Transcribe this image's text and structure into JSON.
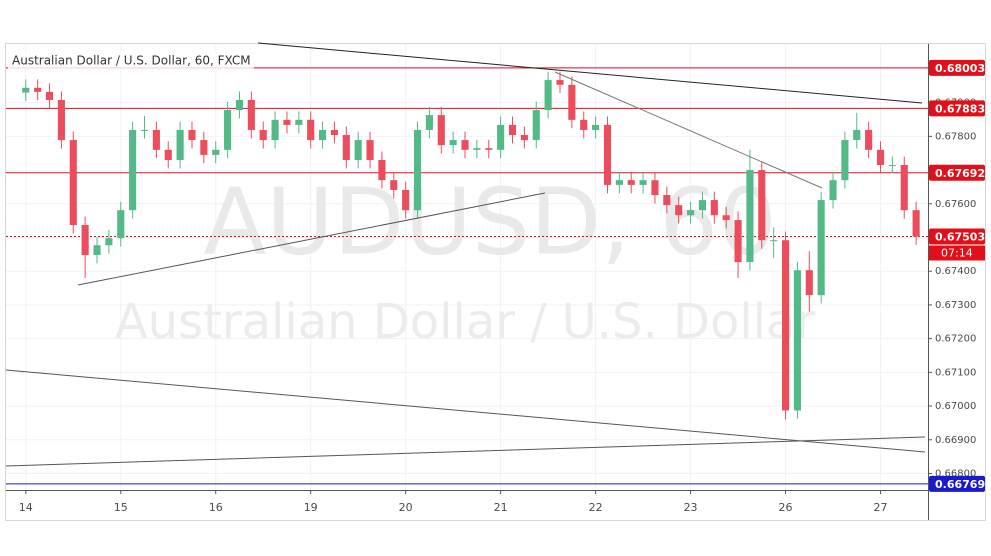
{
  "chart_data": {
    "type": "candlestick",
    "title": "Australian Dollar / U.S. Dollar, 60, FXCM",
    "watermark": "AUDUSD, 60",
    "watermark_subtitle": "Australian Dollar / U.S. Dollar",
    "countdown": "07:14",
    "up_color": "#53b987",
    "down_color": "#eb4d5c",
    "grid": true,
    "xlim": [
      -5,
      228
    ],
    "ylim": [
      0.66751,
      0.68071
    ],
    "xticks": [
      {
        "value": 0,
        "label": "14"
      },
      {
        "value": 24,
        "label": "15"
      },
      {
        "value": 48,
        "label": "16"
      },
      {
        "value": 72,
        "label": "19"
      },
      {
        "value": 96,
        "label": "20"
      },
      {
        "value": 120,
        "label": "21"
      },
      {
        "value": 144,
        "label": "22"
      },
      {
        "value": 168,
        "label": "23"
      },
      {
        "value": 192,
        "label": "26"
      },
      {
        "value": 216,
        "label": "27"
      }
    ],
    "yticks": [
      {
        "value": 0.668,
        "label": "0.66800"
      },
      {
        "value": 0.669,
        "label": "0.66900"
      },
      {
        "value": 0.67,
        "label": "0.67000"
      },
      {
        "value": 0.671,
        "label": "0.67100"
      },
      {
        "value": 0.672,
        "label": "0.67200"
      },
      {
        "value": 0.673,
        "label": "0.67300"
      },
      {
        "value": 0.674,
        "label": "0.67400"
      },
      {
        "value": 0.675,
        "label": "0.67500"
      },
      {
        "value": 0.676,
        "label": "0.67600"
      },
      {
        "value": 0.677,
        "label": "0.67700"
      },
      {
        "value": 0.678,
        "label": "0.67800"
      },
      {
        "value": 0.679,
        "label": "0.67900"
      },
      {
        "value": 0.68,
        "label": "0.68000"
      }
    ],
    "price_lines": [
      {
        "value": 0.68003,
        "color": "#e0101a",
        "style": "solid"
      },
      {
        "value": 0.67883,
        "color": "#e0101a",
        "style": "solid"
      },
      {
        "value": 0.67692,
        "color": "#e0101a",
        "style": "solid"
      },
      {
        "value": 0.67503,
        "color": "#e0101a",
        "style": "dotted"
      },
      {
        "value": 0.66769,
        "color": "#1a1acc",
        "style": "solid"
      }
    ],
    "x": [
      0,
      3,
      6,
      9,
      12,
      15,
      18,
      21,
      24,
      27,
      30,
      33,
      36,
      39,
      42,
      45,
      48,
      51,
      54,
      57,
      60,
      63,
      66,
      69,
      72,
      75,
      78,
      81,
      84,
      87,
      90,
      93,
      96,
      99,
      102,
      105,
      108,
      111,
      114,
      117,
      120,
      123,
      126,
      129,
      132,
      135,
      138,
      141,
      144,
      147,
      150,
      153,
      156,
      159,
      162,
      165,
      168,
      171,
      174,
      177,
      180,
      183,
      186,
      189,
      192,
      195,
      198,
      201,
      204,
      207,
      210,
      213,
      216,
      219,
      222,
      225
    ],
    "open": [
      0.6793,
      0.67944,
      0.67932,
      0.67908,
      0.67789,
      0.67537,
      0.67448,
      0.67477,
      0.67498,
      0.67581,
      0.67819,
      0.67819,
      0.6776,
      0.6773,
      0.67819,
      0.67789,
      0.67745,
      0.6776,
      0.67878,
      0.67908,
      0.67819,
      0.67789,
      0.67849,
      0.67834,
      0.67849,
      0.67789,
      0.67819,
      0.67804,
      0.6773,
      0.67789,
      0.6773,
      0.6767,
      0.67641,
      0.67581,
      0.67819,
      0.67863,
      0.67774,
      0.67789,
      0.6776,
      0.67765,
      0.6776,
      0.67834,
      0.67804,
      0.67789,
      0.67878,
      0.67967,
      0.67953,
      0.67849,
      0.67819,
      0.67834,
      0.67656,
      0.6767,
      0.67656,
      0.6767,
      0.67626,
      0.67596,
      0.67566,
      0.67581,
      0.67611,
      0.67566,
      0.67552,
      0.67427,
      0.677,
      0.67492,
      0.67492,
      0.66987,
      0.67403,
      0.67329,
      0.67611,
      0.6767,
      0.67789,
      0.67819,
      0.6776,
      0.67715,
      0.67715,
      0.67581
    ],
    "high": [
      0.67969,
      0.67969,
      0.67957,
      0.67933,
      0.67814,
      0.67562,
      0.67502,
      0.67523,
      0.67606,
      0.67844,
      0.6786,
      0.67844,
      0.67785,
      0.67844,
      0.67844,
      0.67814,
      0.67785,
      0.67903,
      0.67933,
      0.67933,
      0.67844,
      0.67874,
      0.67874,
      0.67874,
      0.67874,
      0.67844,
      0.67844,
      0.67829,
      0.67814,
      0.67814,
      0.67755,
      0.67695,
      0.67666,
      0.67844,
      0.67888,
      0.67888,
      0.67814,
      0.67814,
      0.6779,
      0.6779,
      0.67859,
      0.67859,
      0.67829,
      0.67903,
      0.67992,
      0.67992,
      0.67978,
      0.67874,
      0.67859,
      0.67859,
      0.67695,
      0.67695,
      0.67695,
      0.67695,
      0.67651,
      0.67621,
      0.67606,
      0.67636,
      0.67636,
      0.67591,
      0.67577,
      0.6776,
      0.67725,
      0.6753,
      0.67517,
      0.67428,
      0.6746,
      0.67636,
      0.67695,
      0.67814,
      0.6787,
      0.67844,
      0.67785,
      0.6774,
      0.6774,
      0.67606
    ],
    "low": [
      0.67905,
      0.67907,
      0.67883,
      0.67764,
      0.67512,
      0.6738,
      0.67423,
      0.67452,
      0.67473,
      0.67556,
      0.67794,
      0.67735,
      0.67705,
      0.67705,
      0.67764,
      0.6772,
      0.6772,
      0.67735,
      0.67853,
      0.67794,
      0.67764,
      0.67764,
      0.67809,
      0.67809,
      0.67764,
      0.67764,
      0.67779,
      0.67705,
      0.67705,
      0.67705,
      0.67645,
      0.67616,
      0.67556,
      0.67556,
      0.67794,
      0.67749,
      0.67749,
      0.67735,
      0.67735,
      0.67735,
      0.67735,
      0.67779,
      0.67764,
      0.67764,
      0.67853,
      0.67928,
      0.67824,
      0.67794,
      0.67794,
      0.67631,
      0.67631,
      0.67631,
      0.67631,
      0.67601,
      0.67571,
      0.67541,
      0.67541,
      0.67556,
      0.67541,
      0.67527,
      0.6738,
      0.67402,
      0.67467,
      0.6744,
      0.6696,
      0.66962,
      0.6728,
      0.67304,
      0.67586,
      0.67645,
      0.67764,
      0.67735,
      0.6769,
      0.6769,
      0.67556,
      0.67478
    ],
    "close": [
      0.67944,
      0.67932,
      0.67908,
      0.67789,
      0.67537,
      0.67448,
      0.67477,
      0.67498,
      0.67581,
      0.67819,
      0.67819,
      0.6776,
      0.6773,
      0.67819,
      0.67789,
      0.67745,
      0.6776,
      0.67878,
      0.67908,
      0.67819,
      0.67789,
      0.67849,
      0.67834,
      0.67849,
      0.67789,
      0.67819,
      0.67804,
      0.6773,
      0.67789,
      0.6773,
      0.6767,
      0.67641,
      0.67581,
      0.67819,
      0.67863,
      0.67774,
      0.67789,
      0.6776,
      0.67765,
      0.6776,
      0.67834,
      0.67804,
      0.67789,
      0.67878,
      0.67967,
      0.67953,
      0.67849,
      0.67819,
      0.67834,
      0.67656,
      0.6767,
      0.67656,
      0.6767,
      0.67626,
      0.67596,
      0.67566,
      0.67581,
      0.67611,
      0.67566,
      0.67552,
      0.67427,
      0.677,
      0.67492,
      0.67492,
      0.66987,
      0.67403,
      0.67329,
      0.67611,
      0.6767,
      0.67789,
      0.67819,
      0.6776,
      0.67715,
      0.67715,
      0.67581,
      0.67503
    ]
  }
}
